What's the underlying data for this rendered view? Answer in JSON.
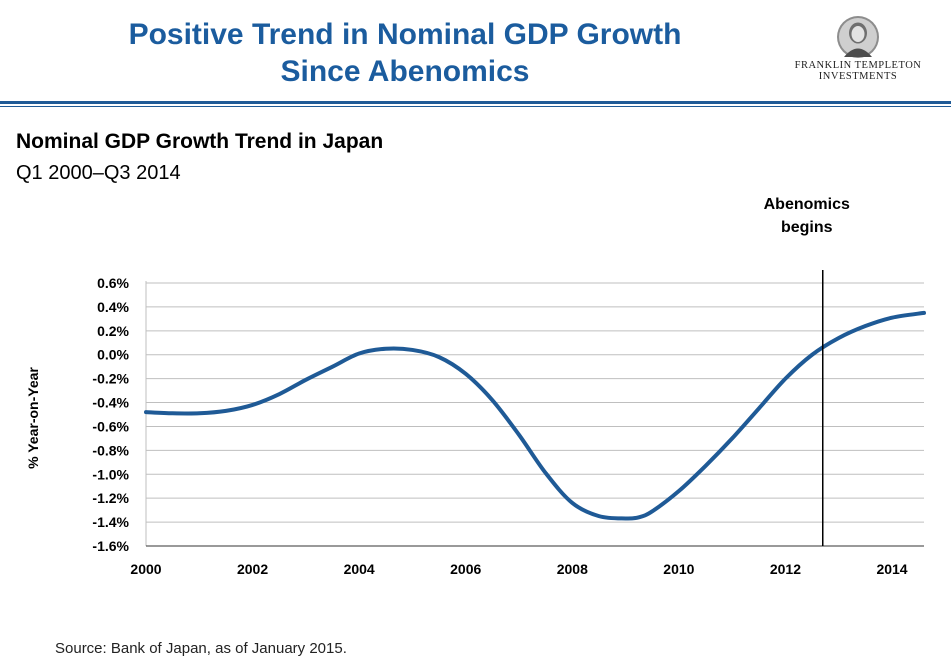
{
  "header": {
    "title_line1": "Positive Trend in Nominal GDP Growth",
    "title_line2": "Since Abenomics",
    "logo_line1": "FRANKLIN TEMPLETON",
    "logo_line2": "INVESTMENTS"
  },
  "colors": {
    "title": "#1b5c9e",
    "line": "#1f5a96",
    "grid": "#bfbfbf"
  },
  "chart_data": {
    "type": "line",
    "title": "Nominal GDP Growth Trend in Japan",
    "subtitle": "Q1 2000–Q3 2014",
    "ylabel": "% Year-on-Year",
    "xlabel": "",
    "xlim": [
      2000,
      2014.6
    ],
    "ylim": [
      -1.6,
      0.6
    ],
    "grid": true,
    "x_ticks": [
      2000,
      2002,
      2004,
      2006,
      2008,
      2010,
      2012,
      2014
    ],
    "x_tick_labels": [
      "2000",
      "2002",
      "2004",
      "2006",
      "2008",
      "2010",
      "2012",
      "2014"
    ],
    "y_ticks": [
      0.6,
      0.4,
      0.2,
      0.0,
      -0.2,
      -0.4,
      -0.6,
      -0.8,
      -1.0,
      -1.2,
      -1.4,
      -1.6
    ],
    "y_tick_labels": [
      "0.6%",
      "0.4%",
      "0.2%",
      "0.0%",
      "-0.2%",
      "-0.4%",
      "-0.6%",
      "-0.8%",
      "-1.0%",
      "-1.2%",
      "-1.4%",
      "-1.6%"
    ],
    "series": [
      {
        "color": "#1f5a96",
        "x": [
          2000,
          2000.5,
          2001,
          2001.5,
          2002,
          2002.5,
          2003,
          2003.5,
          2004,
          2004.5,
          2005,
          2005.5,
          2006,
          2006.5,
          2007,
          2007.5,
          2008,
          2008.5,
          2009,
          2009.25,
          2009.5,
          2010,
          2010.5,
          2011,
          2011.5,
          2012,
          2012.5,
          2013,
          2013.5,
          2014,
          2014.6
        ],
        "y": [
          -0.48,
          -0.49,
          -0.49,
          -0.47,
          -0.42,
          -0.33,
          -0.21,
          -0.1,
          0.01,
          0.05,
          0.04,
          -0.02,
          -0.16,
          -0.38,
          -0.67,
          -0.99,
          -1.24,
          -1.35,
          -1.37,
          -1.36,
          -1.31,
          -1.14,
          -0.93,
          -0.7,
          -0.45,
          -0.2,
          0.0,
          0.14,
          0.24,
          0.31,
          0.35
        ]
      }
    ],
    "annotations": [
      {
        "x": 2012.7,
        "text_line1": "Abenomics",
        "text_line2": "begins"
      }
    ]
  },
  "footer": {
    "source": "Source: Bank of Japan, as of January 2015."
  }
}
